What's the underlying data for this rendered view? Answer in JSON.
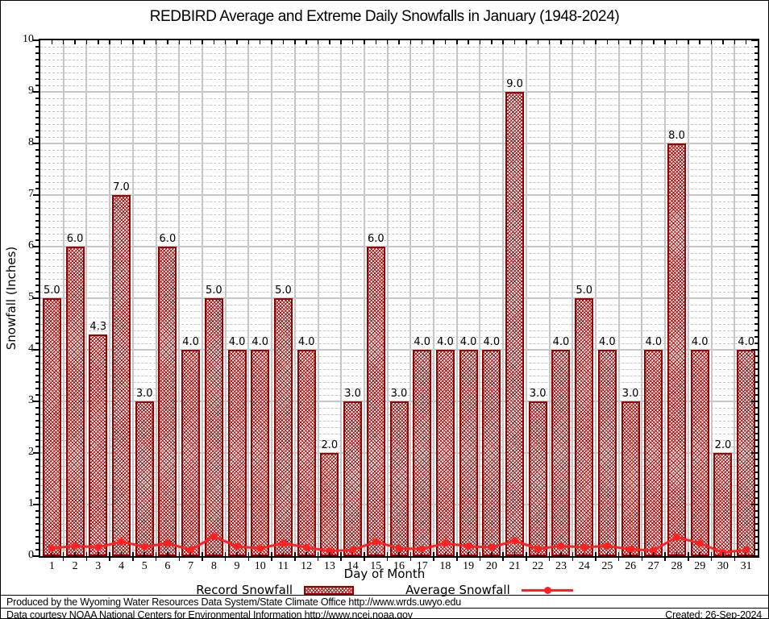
{
  "chart_data": {
    "type": "bar",
    "title": "REDBIRD Average and Extreme Daily Snowfalls in January (1948-2024)",
    "xlabel": "Day of Month",
    "ylabel": "Snowfall (Inches)",
    "ylim": [
      0,
      10
    ],
    "y_major_step": 1,
    "y_minor_step": 0.125,
    "grid": "major solid gray, minor dashed gray, vertical line at each day boundary",
    "legend_position": "bottom center",
    "categories": [
      1,
      2,
      3,
      4,
      5,
      6,
      7,
      8,
      9,
      10,
      11,
      12,
      13,
      14,
      15,
      16,
      17,
      18,
      19,
      20,
      21,
      22,
      23,
      24,
      25,
      26,
      27,
      28,
      29,
      30,
      31
    ],
    "series": [
      {
        "name": "Record Snowfall",
        "type": "bar",
        "values": [
          5.0,
          6.0,
          4.3,
          7.0,
          3.0,
          6.0,
          4.0,
          5.0,
          4.0,
          4.0,
          5.0,
          4.0,
          2.0,
          3.0,
          6.0,
          3.0,
          4.0,
          4.0,
          4.0,
          4.0,
          9.0,
          3.0,
          4.0,
          5.0,
          4.0,
          3.0,
          4.0,
          8.0,
          4.0,
          2.0,
          4.0
        ],
        "labels": [
          "5.0",
          "6.0",
          "4.3",
          "7.0",
          "3.0",
          "6.0",
          "4.0",
          "5.0",
          "4.0",
          "4.0",
          "5.0",
          "4.0",
          "2.0",
          "3.0",
          "6.0",
          "3.0",
          "4.0",
          "4.0",
          "4.0",
          "4.0",
          "9.0",
          "3.0",
          "4.0",
          "5.0",
          "4.0",
          "3.0",
          "4.0",
          "8.0",
          "4.0",
          "2.0",
          "4.0"
        ]
      },
      {
        "name": "Average Snowfall",
        "type": "line",
        "values": [
          0.15,
          0.2,
          0.17,
          0.28,
          0.18,
          0.25,
          0.12,
          0.38,
          0.19,
          0.15,
          0.25,
          0.17,
          0.1,
          0.12,
          0.28,
          0.15,
          0.14,
          0.25,
          0.19,
          0.17,
          0.3,
          0.14,
          0.2,
          0.17,
          0.2,
          0.13,
          0.11,
          0.37,
          0.25,
          0.07,
          0.12
        ]
      }
    ],
    "colors": {
      "bar_border": "#990000",
      "bar_hatch": "#a31515",
      "average_line": "#ff2121",
      "grid_major": "#c6c6c6",
      "grid_minor": "#c3c3c3"
    }
  },
  "y_axis_ticks": [
    "0",
    "1",
    "2",
    "3",
    "4",
    "5",
    "6",
    "7",
    "8",
    "9",
    "10"
  ],
  "footer": {
    "line1": "Produced by the Wyoming Water Resources Data System/State Climate Office http://www.wrds.uwyo.edu",
    "line2": "Data courtesy NOAA National Centers for Environmental Information http://www.ncei.noaa.gov",
    "created": "Created: 26-Sep-2024"
  }
}
